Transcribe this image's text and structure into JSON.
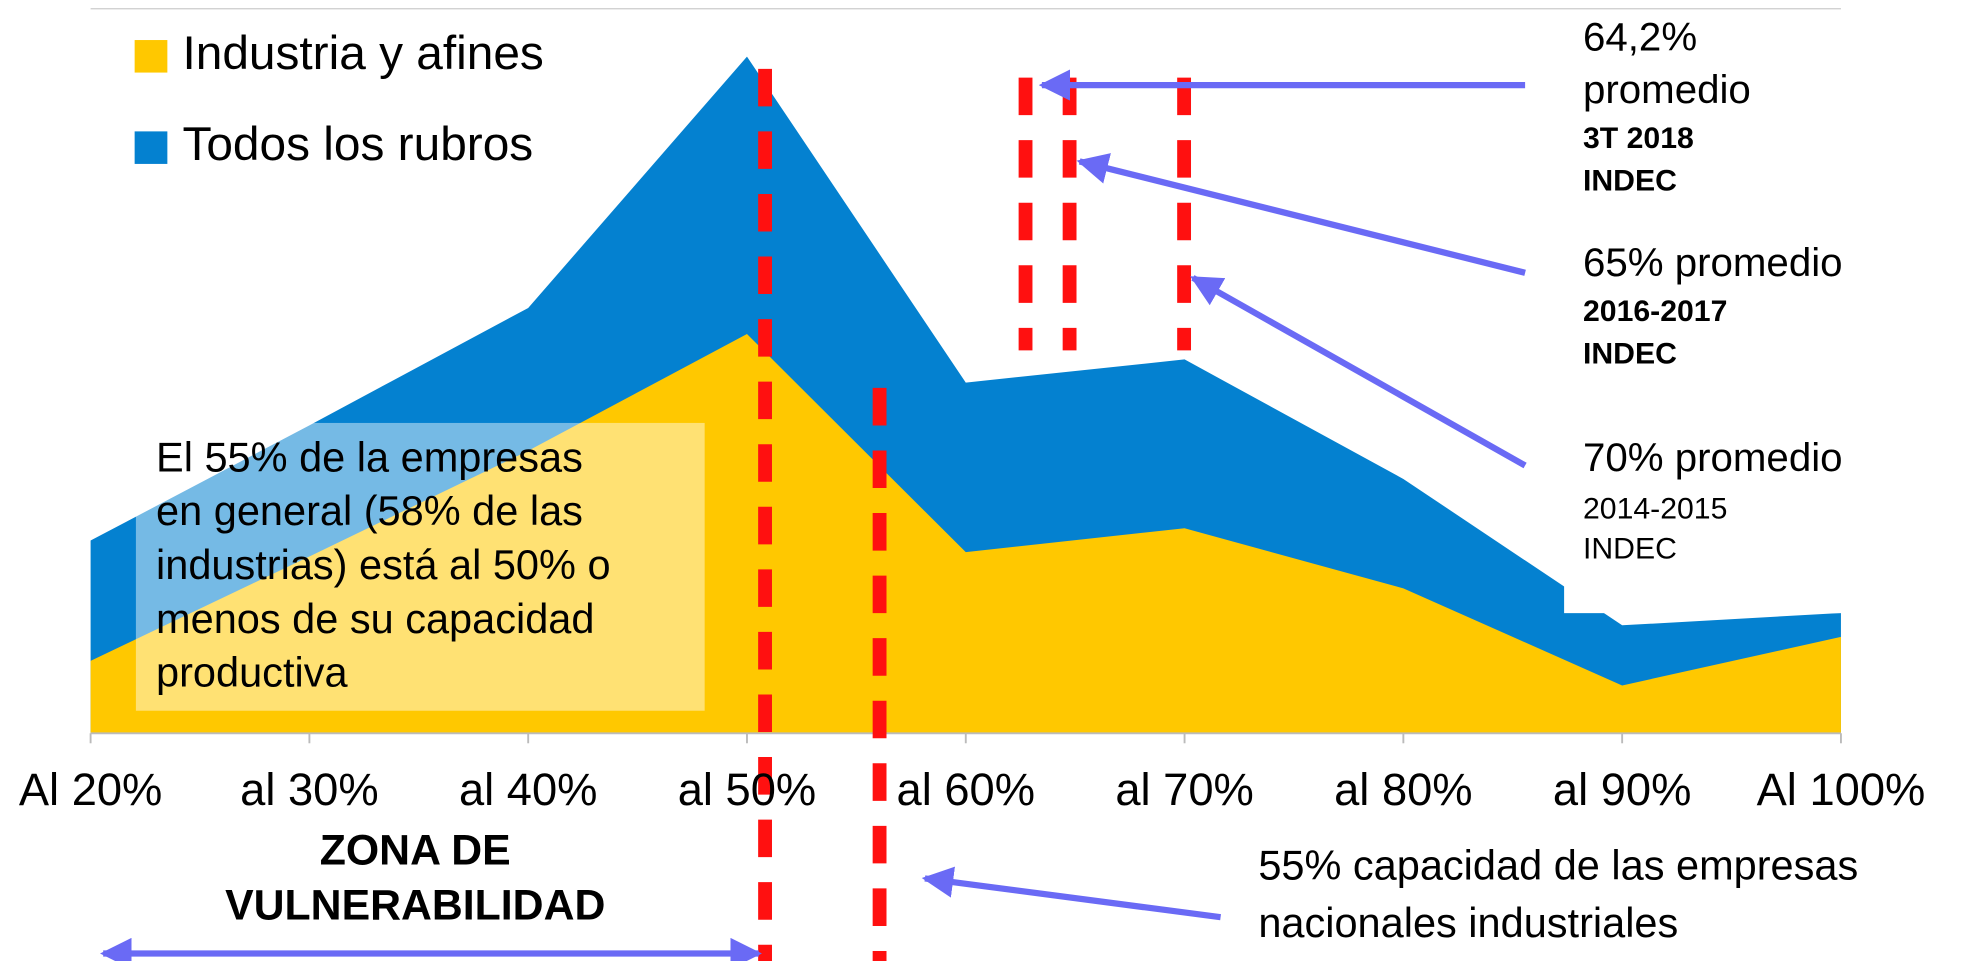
{
  "chart_data": {
    "type": "area",
    "categories": [
      "Al 20%",
      "al 30%",
      "al 40%",
      "al 50%",
      "al 60%",
      "al 70%",
      "al 80%",
      "al 90%",
      "Al 100%"
    ],
    "series": [
      {
        "name": "Todos los rubros",
        "color": "#0481d0",
        "values": [
          26.6,
          42.5,
          58.7,
          93.4,
          48.4,
          51.6,
          35.1,
          14.9,
          16.6
        ]
      },
      {
        "name": "Industria y afines",
        "color": "#ffc800",
        "values": [
          10.0,
          24.4,
          39.0,
          55.1,
          25.0,
          28.3,
          20.0,
          6.6,
          13.3
        ]
      }
    ],
    "ylim": [
      0,
      100
    ],
    "annotations": {
      "box": [
        "El 55% de la empresas",
        "en general (58% de las",
        "industrias) está al 50% o",
        "menos de su capacidad",
        "productiva"
      ],
      "zone": [
        "ZONA DE",
        "VULNERABILIDAD"
      ],
      "a2018": [
        "64,2%",
        "promedio",
        "3T 2018",
        "INDEC"
      ],
      "a2016": [
        "65% promedio",
        "2016-2017",
        "INDEC"
      ],
      "a2014": [
        "70% promedio",
        "2014-2015",
        "INDEC"
      ],
      "national": [
        "55% capacidad de las empresas",
        "nacionales industriales"
      ]
    }
  }
}
